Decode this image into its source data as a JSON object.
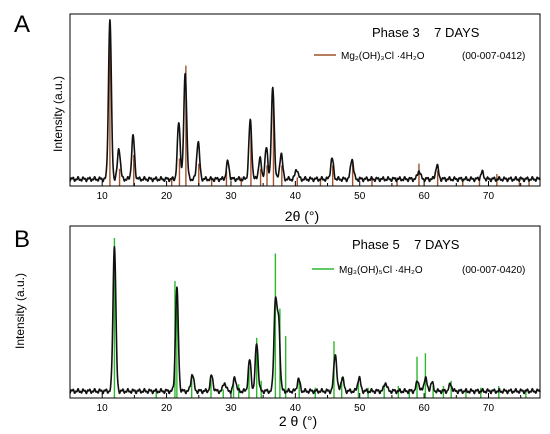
{
  "panels": [
    {
      "letter": "A",
      "annotation": "Phase 3    7 DAYS",
      "legend_formula": "Mg₂(OH)₃Cl ·4H₂O",
      "legend_code": "(00-007-0412)",
      "xlabel": "2θ (°)",
      "ylabel": "Intensity (a.u.)"
    },
    {
      "letter": "B",
      "annotation": "Phase 5    7 DAYS",
      "legend_formula": "Mg₃(OH)₅Cl ·4H₂O",
      "legend_code": "(00-007-0420)",
      "xlabel": "2 θ (°)",
      "ylabel": "Intensity (a.u.)"
    }
  ],
  "chart_data": [
    {
      "type": "line",
      "title": "Phase 3    7 DAYS",
      "xlabel": "2θ (°)",
      "ylabel": "Intensity (a.u.)",
      "xlim": [
        5,
        78
      ],
      "ylim": [
        0,
        1
      ],
      "xticks": [
        10,
        20,
        30,
        40,
        50,
        60,
        70
      ],
      "grid": false,
      "legend_position": "top-right",
      "colors": {
        "pattern": "#111111",
        "reference": "#a0522d"
      },
      "series": [
        {
          "name": "",
          "baseline": 0.04,
          "peaks": [
            [
              11.2,
              0.93
            ],
            [
              12.6,
              0.18
            ],
            [
              14.8,
              0.25
            ],
            [
              21.9,
              0.33
            ],
            [
              22.9,
              0.62
            ],
            [
              24.9,
              0.22
            ],
            [
              29.5,
              0.1
            ],
            [
              33.0,
              0.34
            ],
            [
              34.5,
              0.12
            ],
            [
              35.5,
              0.18
            ],
            [
              36.5,
              0.53
            ],
            [
              37.8,
              0.15
            ],
            [
              40.2,
              0.06
            ],
            [
              45.7,
              0.12
            ],
            [
              48.8,
              0.12
            ],
            [
              59.2,
              0.05
            ],
            [
              62.0,
              0.08
            ],
            [
              69.0,
              0.04
            ]
          ]
        },
        {
          "name": "Mg₂(OH)₃Cl ·4H₂O",
          "sticks": [
            [
              11.2,
              0.97
            ],
            [
              12.7,
              0.1
            ],
            [
              14.9,
              0.18
            ],
            [
              20.8,
              0.05
            ],
            [
              22.0,
              0.16
            ],
            [
              23.0,
              0.7
            ],
            [
              25.0,
              0.13
            ],
            [
              27.0,
              0.05
            ],
            [
              29.3,
              0.09
            ],
            [
              31.6,
              0.05
            ],
            [
              33.1,
              0.32
            ],
            [
              34.6,
              0.1
            ],
            [
              35.6,
              0.12
            ],
            [
              36.6,
              0.52
            ],
            [
              37.9,
              0.12
            ],
            [
              40.3,
              0.05
            ],
            [
              43.9,
              0.04
            ],
            [
              45.8,
              0.12
            ],
            [
              48.9,
              0.13
            ],
            [
              51.9,
              0.04
            ],
            [
              55.8,
              0.05
            ],
            [
              59.2,
              0.13
            ],
            [
              62.1,
              0.09
            ],
            [
              66.0,
              0.04
            ],
            [
              68.6,
              0.05
            ],
            [
              71.3,
              0.07
            ],
            [
              74.8,
              0.05
            ],
            [
              76.3,
              0.04
            ]
          ]
        }
      ]
    },
    {
      "type": "line",
      "title": "Phase 5    7 DAYS",
      "xlabel": "2 θ (°)",
      "ylabel": "Intensity (a.u.)",
      "xlim": [
        5,
        78
      ],
      "ylim": [
        0,
        1
      ],
      "xticks": [
        10,
        20,
        30,
        40,
        50,
        60,
        70
      ],
      "grid": false,
      "legend_position": "top-right",
      "colors": {
        "pattern": "#111111",
        "reference": "#2eb82e"
      },
      "series": [
        {
          "name": "",
          "baseline": 0.04,
          "peaks": [
            [
              11.9,
              0.85
            ],
            [
              21.6,
              0.6
            ],
            [
              24.0,
              0.1
            ],
            [
              27.0,
              0.09
            ],
            [
              29.0,
              0.05
            ],
            [
              30.6,
              0.08
            ],
            [
              32.9,
              0.18
            ],
            [
              34.0,
              0.28
            ],
            [
              36.9,
              0.52
            ],
            [
              37.4,
              0.4
            ],
            [
              40.5,
              0.07
            ],
            [
              46.2,
              0.22
            ],
            [
              47.3,
              0.08
            ],
            [
              49.9,
              0.08
            ],
            [
              54.0,
              0.05
            ],
            [
              59.0,
              0.06
            ],
            [
              60.2,
              0.08
            ],
            [
              61.2,
              0.05
            ],
            [
              64.1,
              0.04
            ]
          ]
        },
        {
          "name": "Mg₃(OH)₅Cl ·4H₂O",
          "sticks": [
            [
              11.9,
              0.93
            ],
            [
              18.4,
              0.05
            ],
            [
              21.3,
              0.68
            ],
            [
              21.6,
              0.55
            ],
            [
              23.9,
              0.14
            ],
            [
              26.9,
              0.11
            ],
            [
              28.8,
              0.05
            ],
            [
              30.4,
              0.11
            ],
            [
              31.2,
              0.08
            ],
            [
              32.8,
              0.18
            ],
            [
              34.0,
              0.35
            ],
            [
              34.7,
              0.1
            ],
            [
              36.9,
              0.84
            ],
            [
              37.6,
              0.52
            ],
            [
              38.5,
              0.36
            ],
            [
              40.6,
              0.1
            ],
            [
              43.1,
              0.06
            ],
            [
              46.0,
              0.33
            ],
            [
              47.2,
              0.12
            ],
            [
              49.8,
              0.09
            ],
            [
              51.3,
              0.06
            ],
            [
              53.8,
              0.08
            ],
            [
              56.0,
              0.07
            ],
            [
              57.7,
              0.05
            ],
            [
              58.9,
              0.24
            ],
            [
              60.2,
              0.26
            ],
            [
              61.4,
              0.07
            ],
            [
              63.0,
              0.07
            ],
            [
              64.2,
              0.1
            ],
            [
              66.5,
              0.04
            ],
            [
              68.8,
              0.06
            ],
            [
              71.6,
              0.07
            ],
            [
              75.8,
              0.05
            ]
          ]
        }
      ]
    }
  ]
}
